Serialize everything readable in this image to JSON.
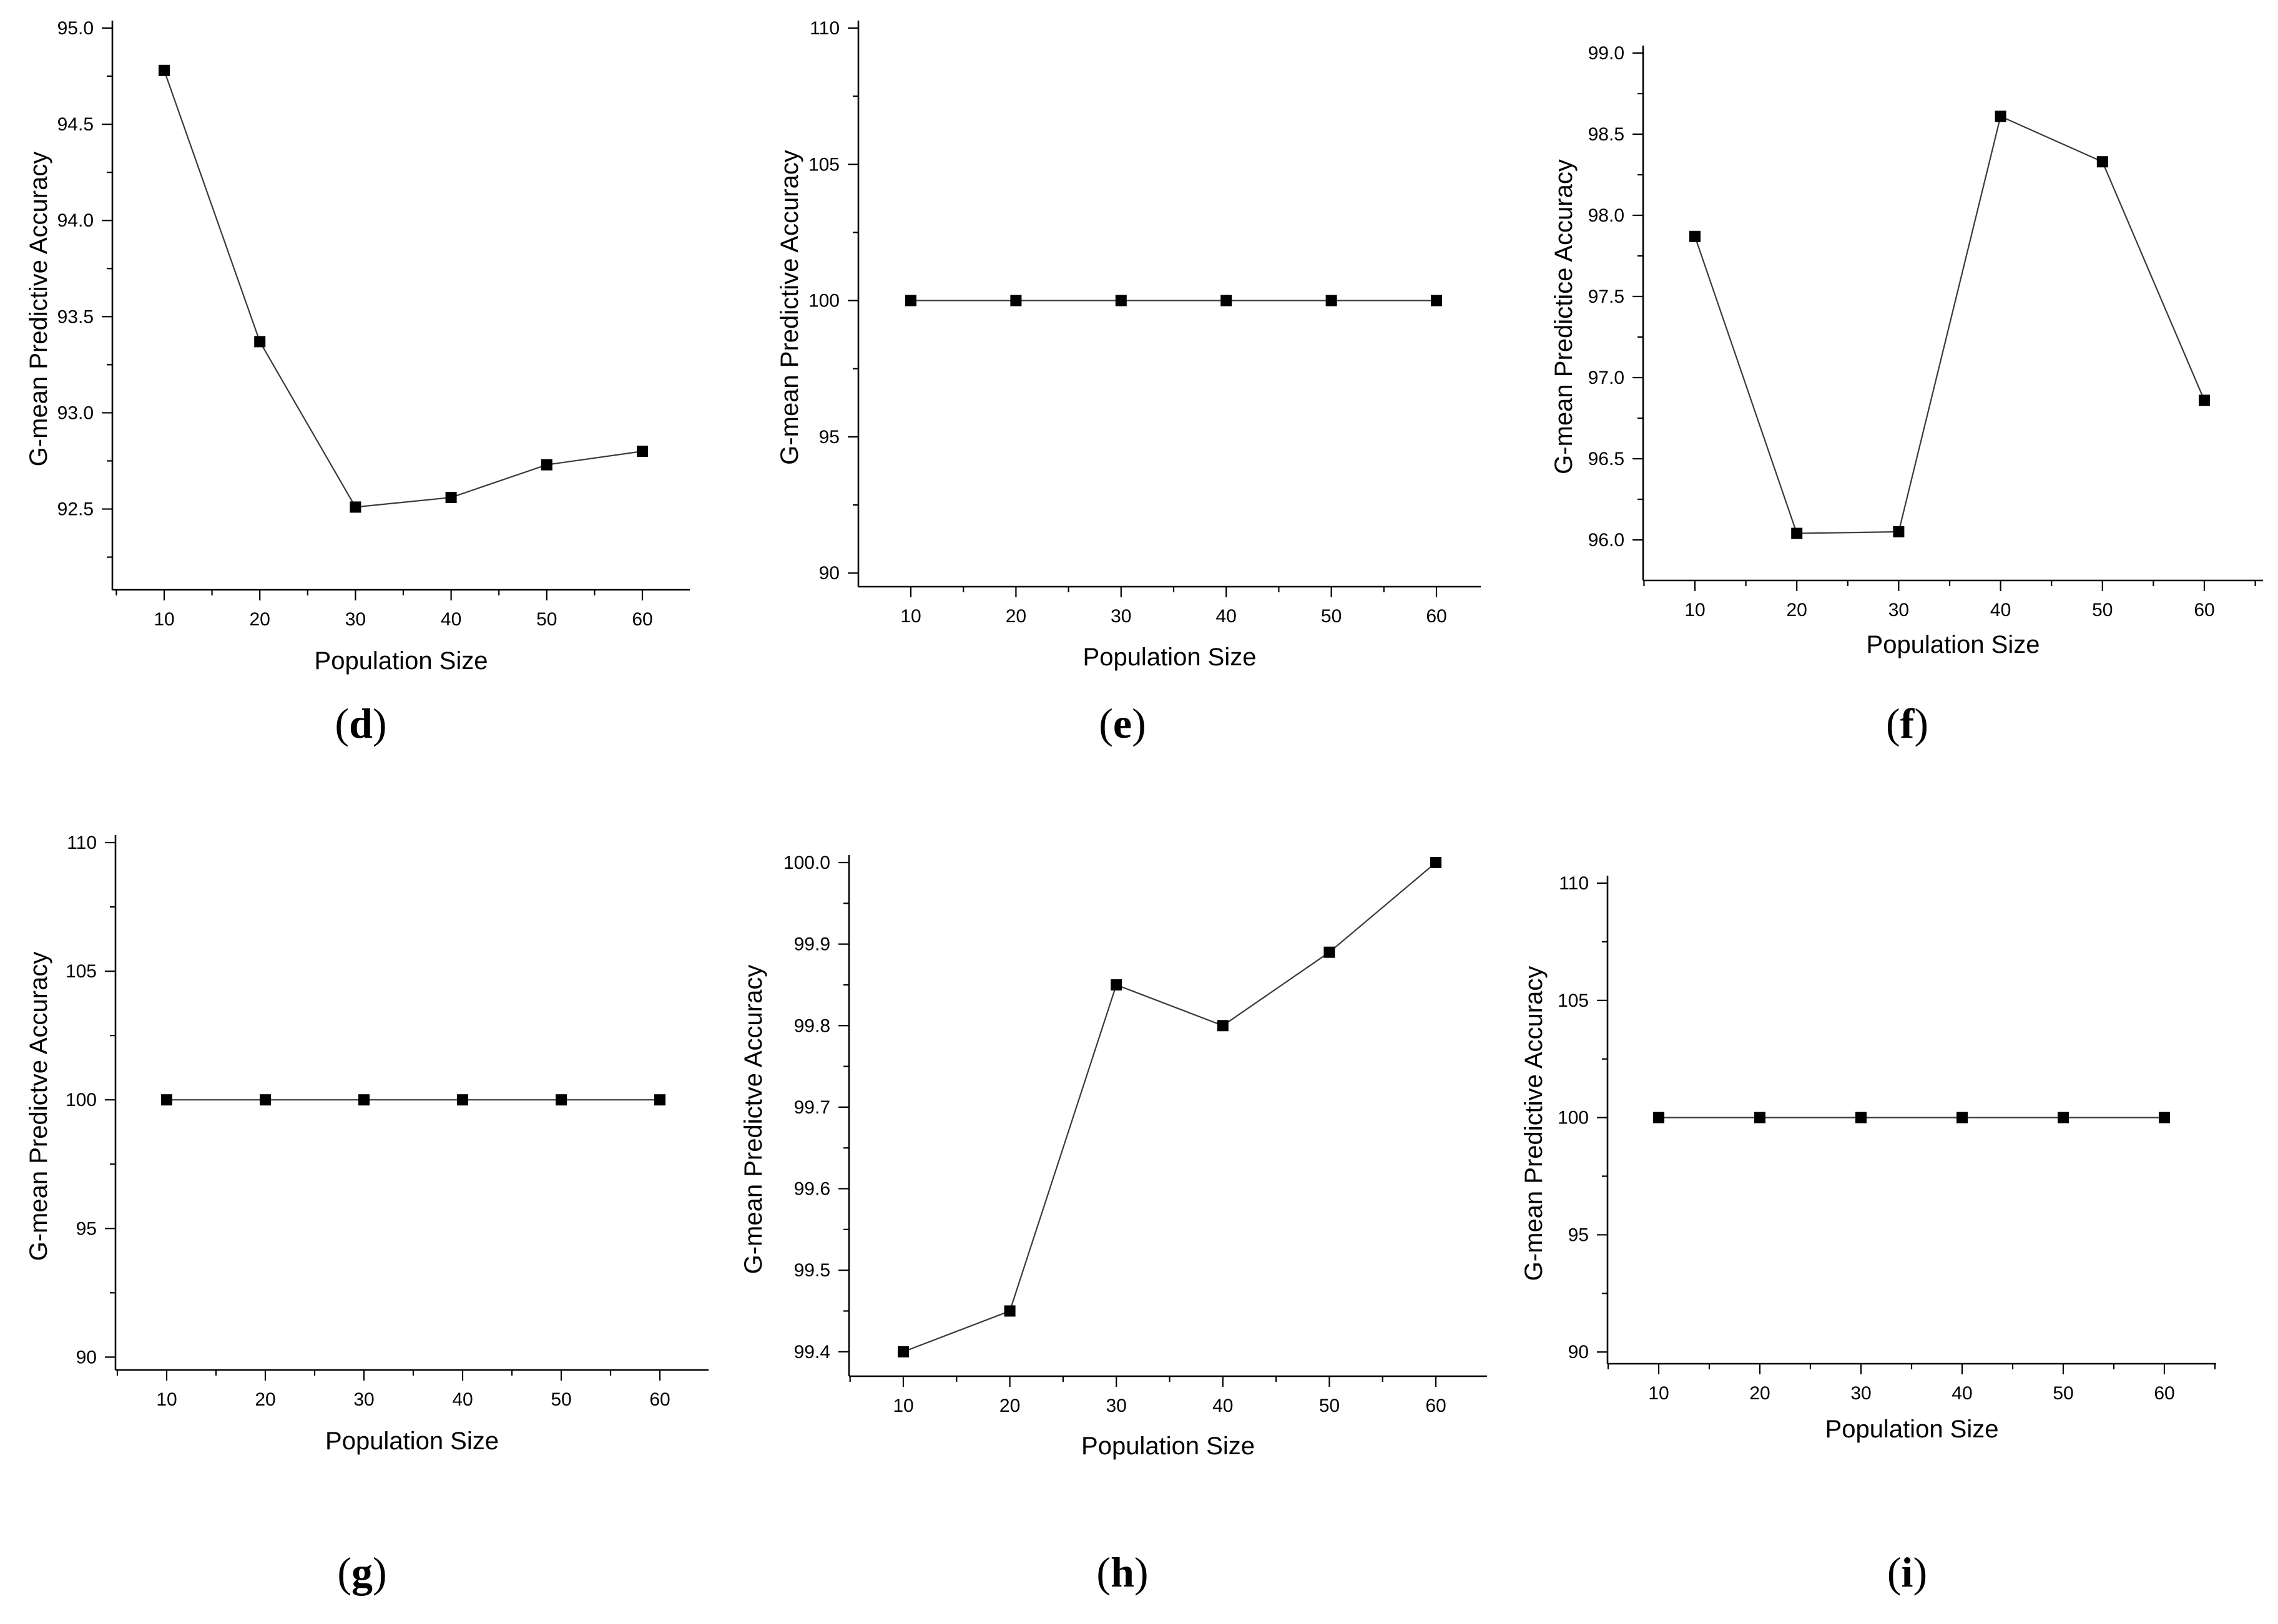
{
  "chart_data": [
    {
      "panel": "d",
      "type": "line",
      "xlabel": "Population Size",
      "ylabel": "G-mean Predictive Accuracy",
      "x": [
        10,
        20,
        30,
        40,
        50,
        60
      ],
      "xticks": [
        "10",
        "20",
        "30",
        "40",
        "50",
        "60"
      ],
      "yticks": [
        "92.5",
        "93.0",
        "93.5",
        "94.0",
        "94.5",
        "95.0"
      ],
      "ylim": [
        92.08,
        95.0
      ],
      "series": [
        {
          "values": [
            94.78,
            93.37,
            92.51,
            92.56,
            92.73,
            92.8
          ]
        }
      ]
    },
    {
      "panel": "e",
      "type": "line",
      "xlabel": "Population Size",
      "ylabel": "G-mean Predictive Accuracy",
      "x": [
        10,
        20,
        30,
        40,
        50,
        60
      ],
      "xticks": [
        "10",
        "20",
        "30",
        "40",
        "50",
        "60"
      ],
      "yticks": [
        "90",
        "95",
        "100",
        "105",
        "110"
      ],
      "ylim": [
        89.5,
        110.0
      ],
      "series": [
        {
          "values": [
            100,
            100,
            100,
            100,
            100,
            100
          ]
        }
      ]
    },
    {
      "panel": "f",
      "type": "line",
      "xlabel": "Population Size",
      "ylabel": "G-mean Predictice Accuracy",
      "x": [
        10,
        20,
        30,
        40,
        50,
        60
      ],
      "xticks": [
        "10",
        "20",
        "30",
        "40",
        "50",
        "60"
      ],
      "yticks": [
        "96.0",
        "96.5",
        "97.0",
        "97.5",
        "98.0",
        "98.5",
        "99.0"
      ],
      "ylim": [
        95.75,
        99.0
      ],
      "series": [
        {
          "values": [
            97.87,
            96.04,
            96.05,
            98.61,
            98.33,
            96.86
          ]
        }
      ]
    },
    {
      "panel": "g",
      "type": "line",
      "xlabel": "Population Size",
      "ylabel": "G-mean Predictve Accuracy",
      "x": [
        10,
        20,
        30,
        40,
        50,
        60
      ],
      "xticks": [
        "10",
        "20",
        "30",
        "40",
        "50",
        "60"
      ],
      "yticks": [
        "90",
        "95",
        "100",
        "105",
        "110"
      ],
      "ylim": [
        89.5,
        110.0
      ],
      "series": [
        {
          "values": [
            100,
            100,
            100,
            100,
            100,
            100
          ]
        }
      ]
    },
    {
      "panel": "h",
      "type": "line",
      "xlabel": "Population Size",
      "ylabel": "G-mean Predictve Accuracy",
      "x": [
        10,
        20,
        30,
        40,
        50,
        60
      ],
      "xticks": [
        "10",
        "20",
        "30",
        "40",
        "50",
        "60"
      ],
      "yticks": [
        "99.4",
        "99.5",
        "99.6",
        "99.7",
        "99.8",
        "99.9",
        "100.0"
      ],
      "ylim": [
        99.37,
        100.0
      ],
      "series": [
        {
          "values": [
            99.4,
            99.45,
            99.85,
            99.8,
            99.89,
            100.0
          ]
        }
      ]
    },
    {
      "panel": "i",
      "type": "line",
      "xlabel": "Population Size",
      "ylabel": "G-mean Predictive Accuracy",
      "x": [
        10,
        20,
        30,
        40,
        50,
        60
      ],
      "xticks": [
        "10",
        "20",
        "30",
        "40",
        "50",
        "60"
      ],
      "yticks": [
        "90",
        "95",
        "100",
        "105",
        "110"
      ],
      "ylim": [
        89.5,
        110.0
      ],
      "series": [
        {
          "values": [
            100,
            100,
            100,
            100,
            100,
            100
          ]
        }
      ]
    }
  ],
  "captions": {
    "d": "d",
    "e": "e",
    "f": "f",
    "g": "g",
    "h": "h",
    "i": "i"
  }
}
